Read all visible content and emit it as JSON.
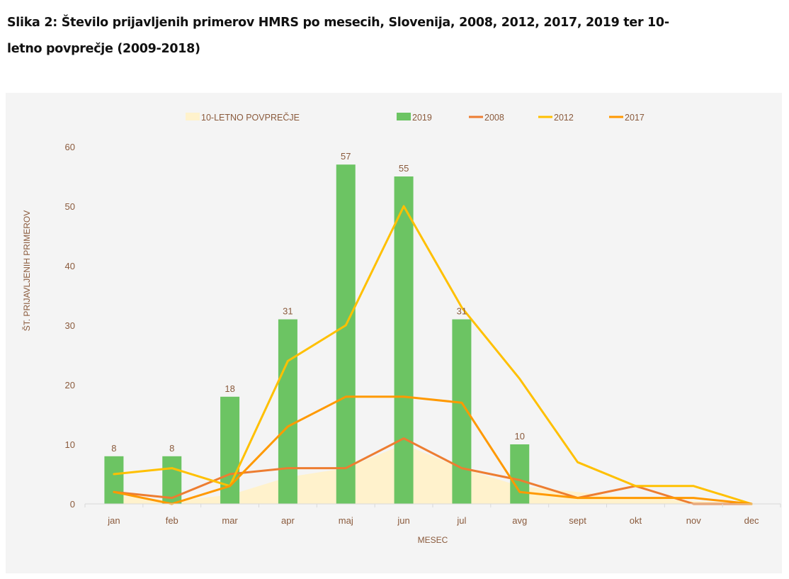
{
  "caption": {
    "line1": "Slika 2: Število prijavljenih primerov HMRS po mesecih, Slovenija, 2008, 2012, 2017, 2019 ter 10-",
    "line2": "letno povprečje (2009-2018)"
  },
  "chart_data": {
    "type": "bar",
    "title": "Slika 2: Število prijavljenih primerov HMRS po mesecih, Slovenija, 2008, 2012, 2017, 2019 ter 10-letno povprečje (2009-2018)",
    "xlabel": "MESEC",
    "ylabel": "ŠT. PRIJAVLJENIH PRIMEROV",
    "ylim": [
      0,
      60
    ],
    "yticks": [
      0,
      10,
      20,
      30,
      40,
      50,
      60
    ],
    "grid": false,
    "legend_position": "top",
    "categories": [
      "jan",
      "feb",
      "mar",
      "apr",
      "maj",
      "jun",
      "jul",
      "avg",
      "sept",
      "okt",
      "nov",
      "dec"
    ],
    "series": [
      {
        "name": "10-LETNO POVPREČJE",
        "kind": "area",
        "color": "#fff2cc",
        "values": [
          1.5,
          0.5,
          1.5,
          4.5,
          6,
          10,
          6,
          3,
          2,
          1,
          0.5,
          0
        ]
      },
      {
        "name": "2019",
        "kind": "bar",
        "color": "#6cc463",
        "values": [
          8,
          8,
          18,
          31,
          57,
          55,
          31,
          10,
          null,
          null,
          null,
          null
        ],
        "data_labels": true
      },
      {
        "name": "2008",
        "kind": "line",
        "color": "#ed7d31",
        "values": [
          2,
          1,
          5,
          6,
          6,
          11,
          6,
          4,
          1,
          3,
          0,
          0
        ]
      },
      {
        "name": "2012",
        "kind": "line",
        "color": "#ffc000",
        "values": [
          5,
          6,
          3,
          24,
          30,
          50,
          33,
          21,
          7,
          3,
          3,
          0
        ]
      },
      {
        "name": "2017",
        "kind": "line",
        "color": "#ff9900",
        "values": [
          2,
          0,
          3,
          13,
          18,
          18,
          17,
          2,
          1,
          1,
          1,
          0
        ]
      }
    ]
  }
}
